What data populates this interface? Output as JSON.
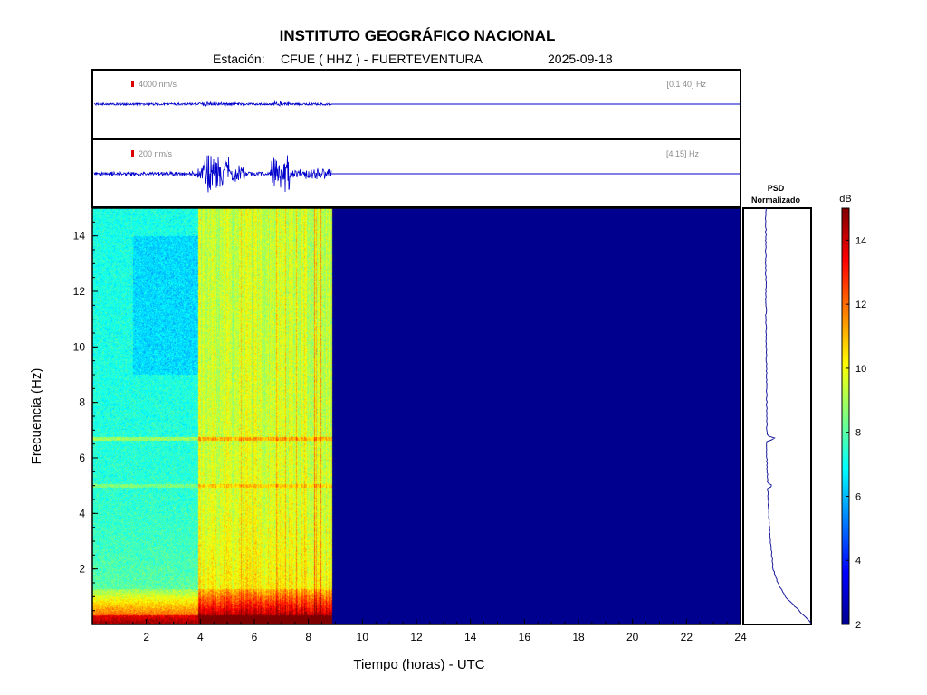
{
  "header": {
    "title": "INSTITUTO GEOGRÁFICO NACIONAL",
    "station_label": "Estación:",
    "station": "CFUE ( HHZ ) - FUERTEVENTURA",
    "date": "2025-09-18"
  },
  "colors": {
    "trace": "#0000cc",
    "scale_bar": "#dd0000",
    "nodata": "#00008f",
    "psd_line": "#1a1a9a"
  },
  "traces": [
    {
      "scale_label": "4000 nm/s",
      "band_label": "[0.1 40] Hz"
    },
    {
      "scale_label": "200 nm/s",
      "band_label": "[4 15] Hz"
    }
  ],
  "psd": {
    "title_line1": "PSD",
    "title_line2": "Normalizado"
  },
  "colorbar": {
    "unit": "dB",
    "range": [
      2,
      15
    ],
    "ticks": [
      "14",
      "12",
      "10",
      "8",
      "6",
      "4",
      "2"
    ],
    "colormap": "jet"
  },
  "chart_data": {
    "type": "heatmap",
    "xlabel": "Tiempo (horas) - UTC",
    "ylabel": "Frecuencia  (Hz)",
    "xlim": [
      0,
      24
    ],
    "ylim": [
      0,
      15
    ],
    "xticks": [
      "2",
      "4",
      "6",
      "8",
      "10",
      "12",
      "14",
      "16",
      "18",
      "20",
      "22",
      "24"
    ],
    "yticks": [
      "2",
      "4",
      "6",
      "8",
      "10",
      "12",
      "14"
    ],
    "data_end_hour": 8.85,
    "spectrogram_features": [
      {
        "description": "high energy low-frequency band",
        "freq_range_hz": [
          0,
          1.2
        ],
        "level_db": 12
      },
      {
        "description": "harmonic line",
        "freq_hz": 6.7,
        "level_db": 8
      },
      {
        "description": "harmonic line",
        "freq_hz": 5.0,
        "level_db": 7.5
      },
      {
        "description": "elevated noise period",
        "time_range_h": [
          3.9,
          8.85
        ],
        "level_db": 8
      }
    ],
    "psd_normalized": {
      "freq_hz": [
        0.1,
        0.5,
        1.0,
        1.5,
        2.0,
        3.0,
        4.0,
        4.9,
        5.0,
        5.1,
        6.0,
        6.6,
        6.7,
        6.8,
        8.0,
        10.0,
        12.0,
        14.0,
        15.0
      ],
      "value": [
        1.0,
        0.75,
        0.45,
        0.28,
        0.18,
        0.12,
        0.08,
        0.06,
        0.18,
        0.06,
        0.04,
        0.04,
        0.25,
        0.04,
        0.04,
        0.03,
        0.02,
        0.02,
        0.02
      ]
    }
  }
}
